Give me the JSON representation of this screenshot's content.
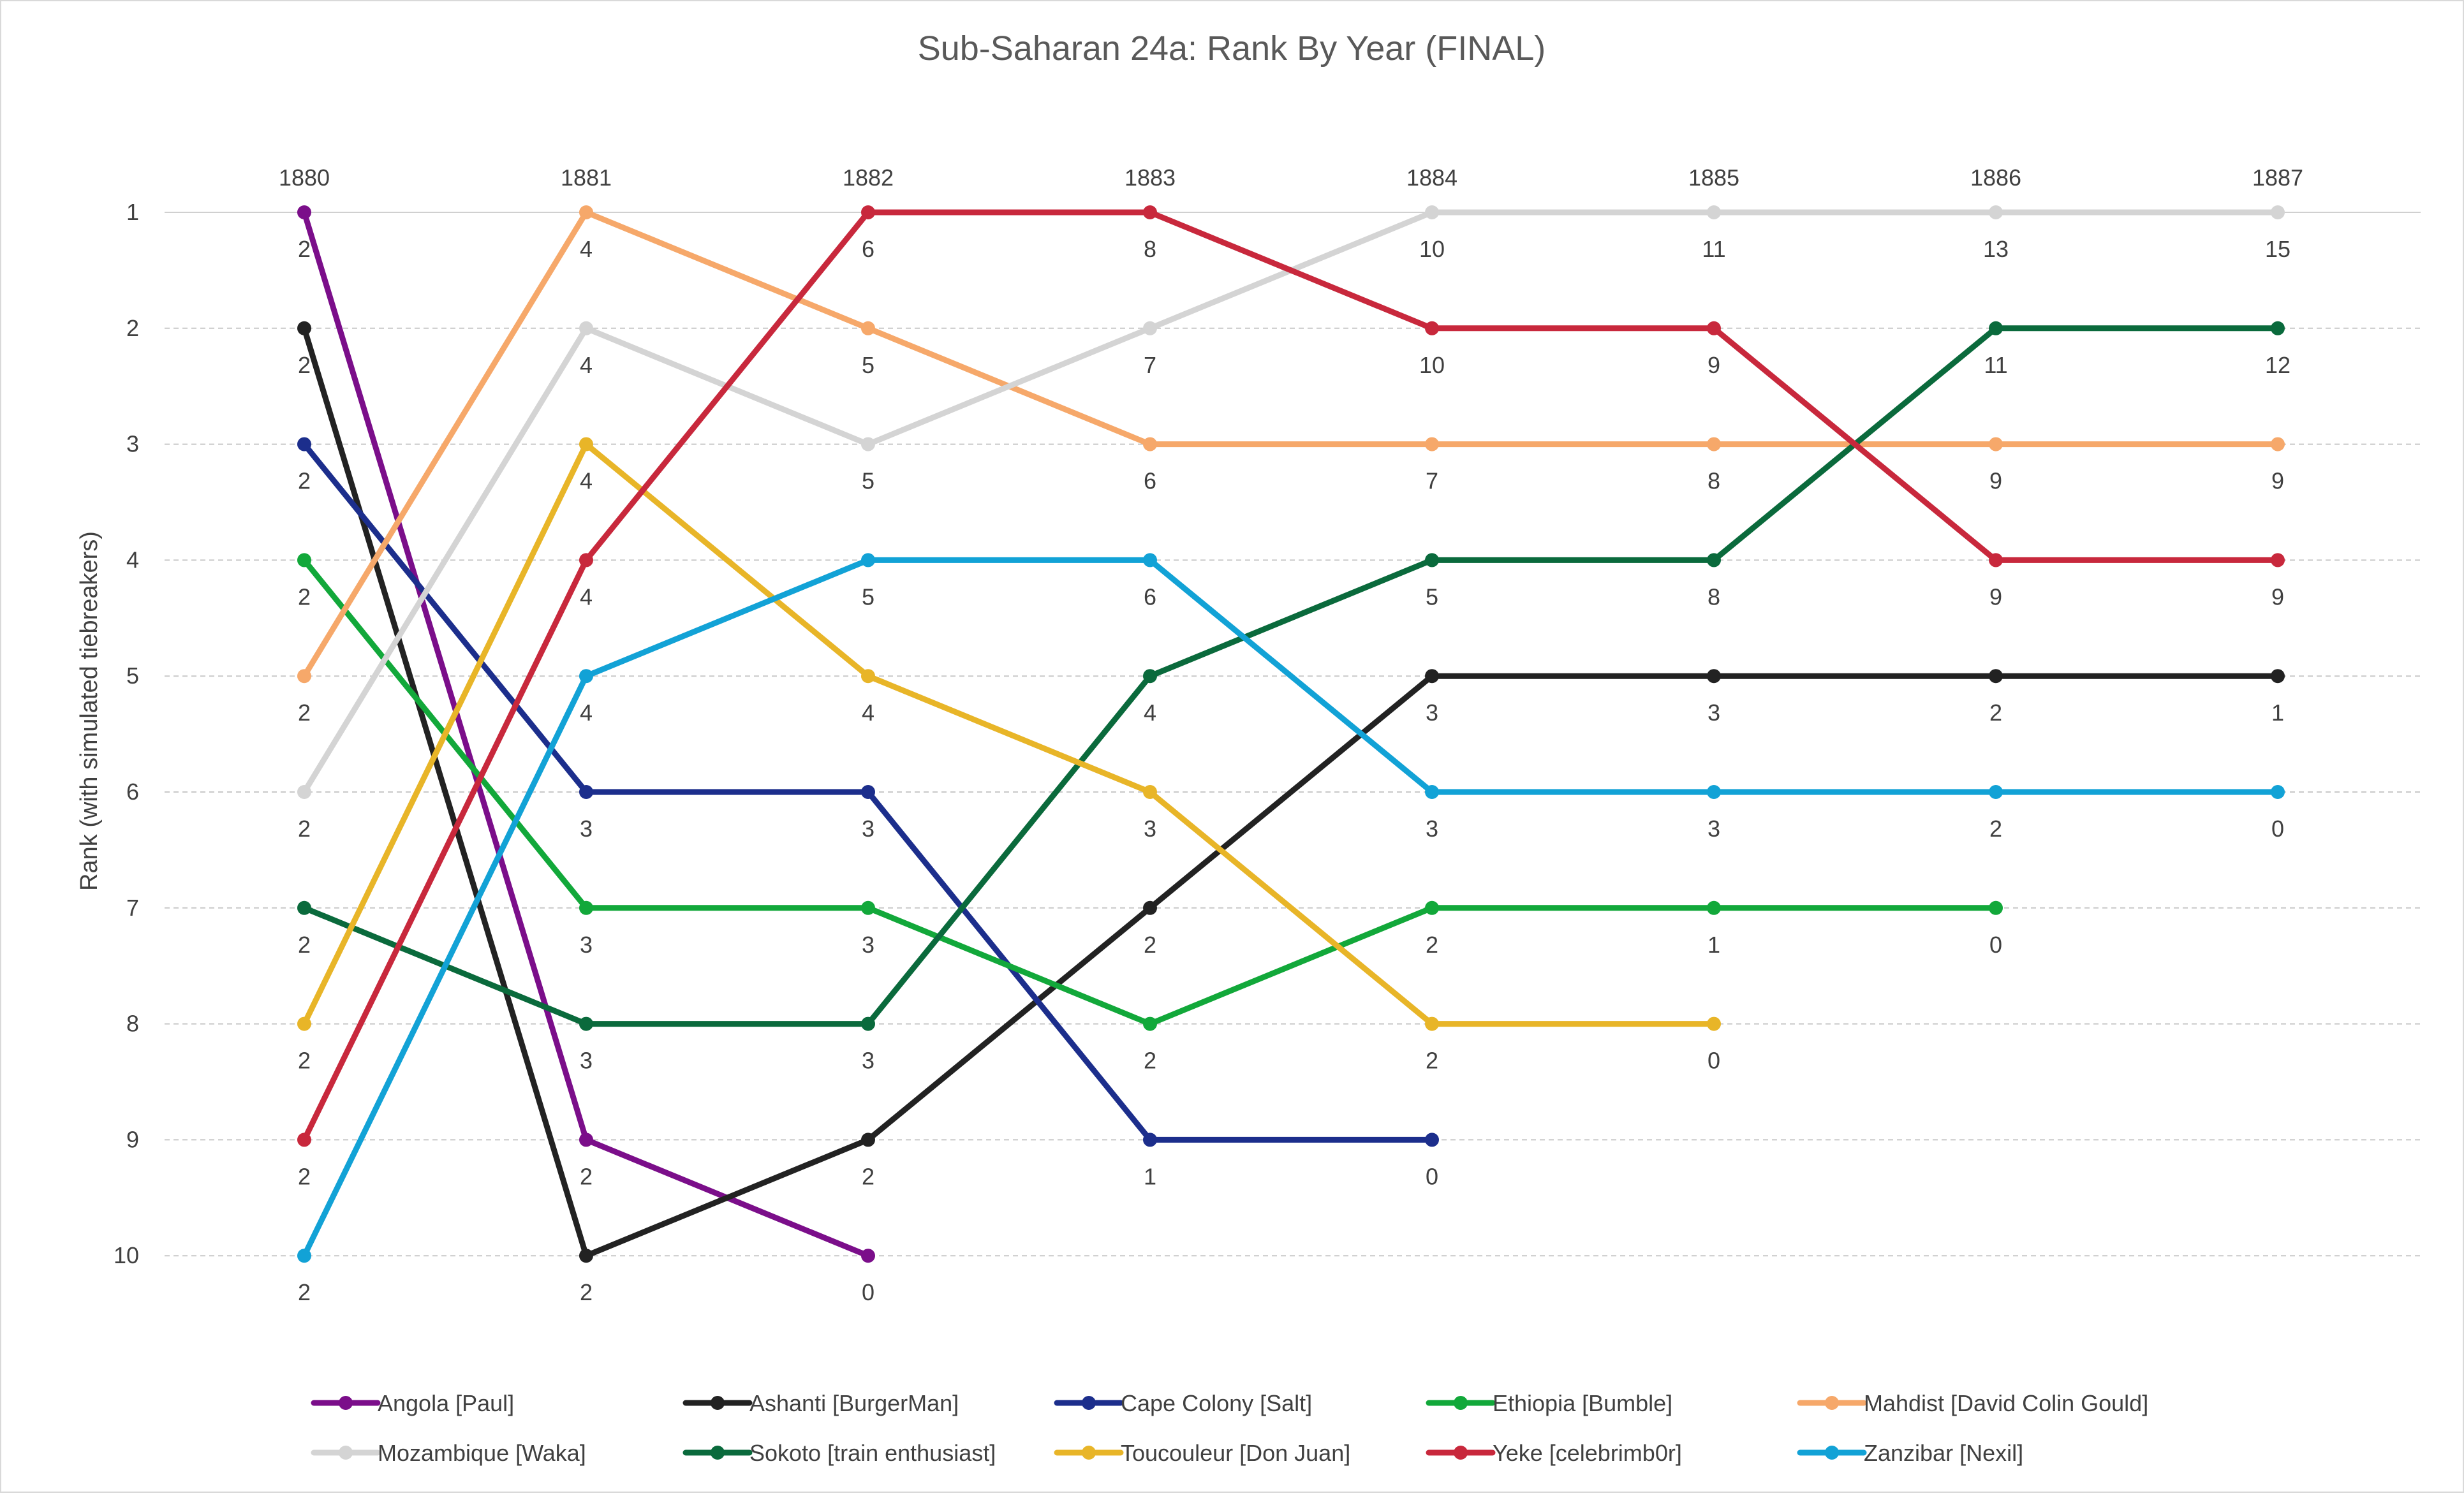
{
  "chart_data": {
    "type": "line",
    "title": "Sub-Saharan 24a: Rank By Year (FINAL)",
    "xlabel": "",
    "ylabel": "Rank (with simulated tiebreakers)",
    "x": [
      "1880",
      "1881",
      "1882",
      "1883",
      "1884",
      "1885",
      "1886",
      "1887"
    ],
    "y_ticks": [
      "1",
      "2",
      "3",
      "4",
      "5",
      "6",
      "7",
      "8",
      "9",
      "10"
    ],
    "ylim": [
      1,
      10
    ],
    "y_inverted": true,
    "grid": true,
    "legend_position": "bottom",
    "series": [
      {
        "name": "Angola [Paul]",
        "color": "#7B0E8A",
        "ranks": [
          1,
          9,
          10,
          null,
          null,
          null,
          null,
          null
        ],
        "labels": [
          2,
          2,
          0,
          null,
          null,
          null,
          null,
          null
        ]
      },
      {
        "name": "Ashanti [BurgerMan]",
        "color": "#222222",
        "ranks": [
          2,
          10,
          9,
          7,
          5,
          5,
          5,
          5
        ],
        "labels": [
          2,
          2,
          2,
          2,
          3,
          3,
          2,
          1
        ]
      },
      {
        "name": "Cape Colony [Salt]",
        "color": "#1C2E8C",
        "ranks": [
          3,
          6,
          6,
          9,
          9,
          null,
          null,
          null
        ],
        "labels": [
          2,
          3,
          3,
          1,
          0,
          null,
          null,
          null
        ]
      },
      {
        "name": "Ethiopia [Bumble]",
        "color": "#12A83A",
        "ranks": [
          4,
          7,
          7,
          8,
          7,
          7,
          7,
          null
        ],
        "labels": [
          2,
          3,
          3,
          2,
          2,
          1,
          0,
          null
        ]
      },
      {
        "name": "Mahdist [David Colin Gould]",
        "color": "#F6A86A",
        "ranks": [
          5,
          1,
          2,
          3,
          3,
          3,
          3,
          3
        ],
        "labels": [
          2,
          4,
          5,
          6,
          7,
          8,
          9,
          9
        ]
      },
      {
        "name": "Mozambique [Waka]",
        "color": "#D4D4D4",
        "ranks": [
          6,
          2,
          3,
          2,
          1,
          1,
          1,
          1
        ],
        "labels": [
          2,
          4,
          5,
          7,
          10,
          11,
          13,
          15
        ]
      },
      {
        "name": "Sokoto [train enthusiast]",
        "color": "#0A6A3C",
        "ranks": [
          7,
          8,
          8,
          5,
          4,
          4,
          2,
          2
        ],
        "labels": [
          2,
          3,
          3,
          4,
          5,
          8,
          11,
          12
        ]
      },
      {
        "name": "Toucouleur [Don Juan]",
        "color": "#E8B528",
        "ranks": [
          8,
          3,
          5,
          6,
          8,
          8,
          null,
          null
        ],
        "labels": [
          2,
          4,
          4,
          3,
          2,
          0,
          null,
          null
        ]
      },
      {
        "name": "Yeke [celebrimb0r]",
        "color": "#C8283C",
        "ranks": [
          9,
          4,
          1,
          1,
          2,
          2,
          4,
          4
        ],
        "labels": [
          2,
          4,
          6,
          8,
          10,
          9,
          9,
          9
        ]
      },
      {
        "name": "Zanzibar [Nexil]",
        "color": "#12A2D6",
        "ranks": [
          10,
          5,
          4,
          4,
          6,
          6,
          6,
          6
        ],
        "labels": [
          2,
          4,
          5,
          6,
          3,
          3,
          2,
          0
        ]
      }
    ]
  }
}
